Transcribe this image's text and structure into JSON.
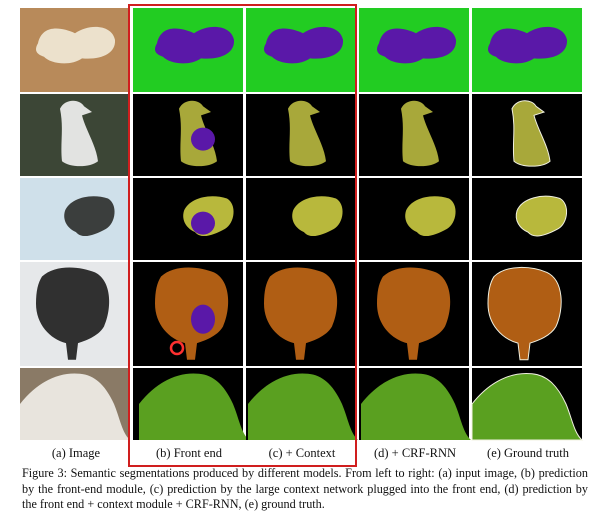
{
  "figure": {
    "columns": [
      {
        "key": "image",
        "label": "(a) Image"
      },
      {
        "key": "front_end",
        "label": "(b) Front end"
      },
      {
        "key": "context",
        "label": "(c) + Context"
      },
      {
        "key": "crf_rnn",
        "label": "(d) + CRF-RNN"
      },
      {
        "key": "ground_truth",
        "label": "(e) Ground truth"
      }
    ],
    "rows": [
      {
        "subject": "dog on couch",
        "background_color": "#22cc22",
        "object_color": "#5a18a8"
      },
      {
        "subject": "penguin",
        "background_color": "#000000",
        "object_color": "#a8a83a"
      },
      {
        "subject": "bird at feeder",
        "background_color": "#000000",
        "object_color": "#b8b83c"
      },
      {
        "subject": "sheep in snow",
        "background_color": "#000000",
        "object_color": "#b05e14"
      },
      {
        "subject": "cow",
        "background_color": "#000000",
        "object_color": "#5aa020"
      }
    ],
    "caption": "Figure 3: Semantic segmentations produced by different models. From left to right: (a) input image, (b) prediction by the front-end module, (c) prediction by the large context network plugged into the front end, (d) prediction by the front end + context module + CRF-RNN, (e) ground truth.",
    "highlight_color": "#d01e1e"
  }
}
